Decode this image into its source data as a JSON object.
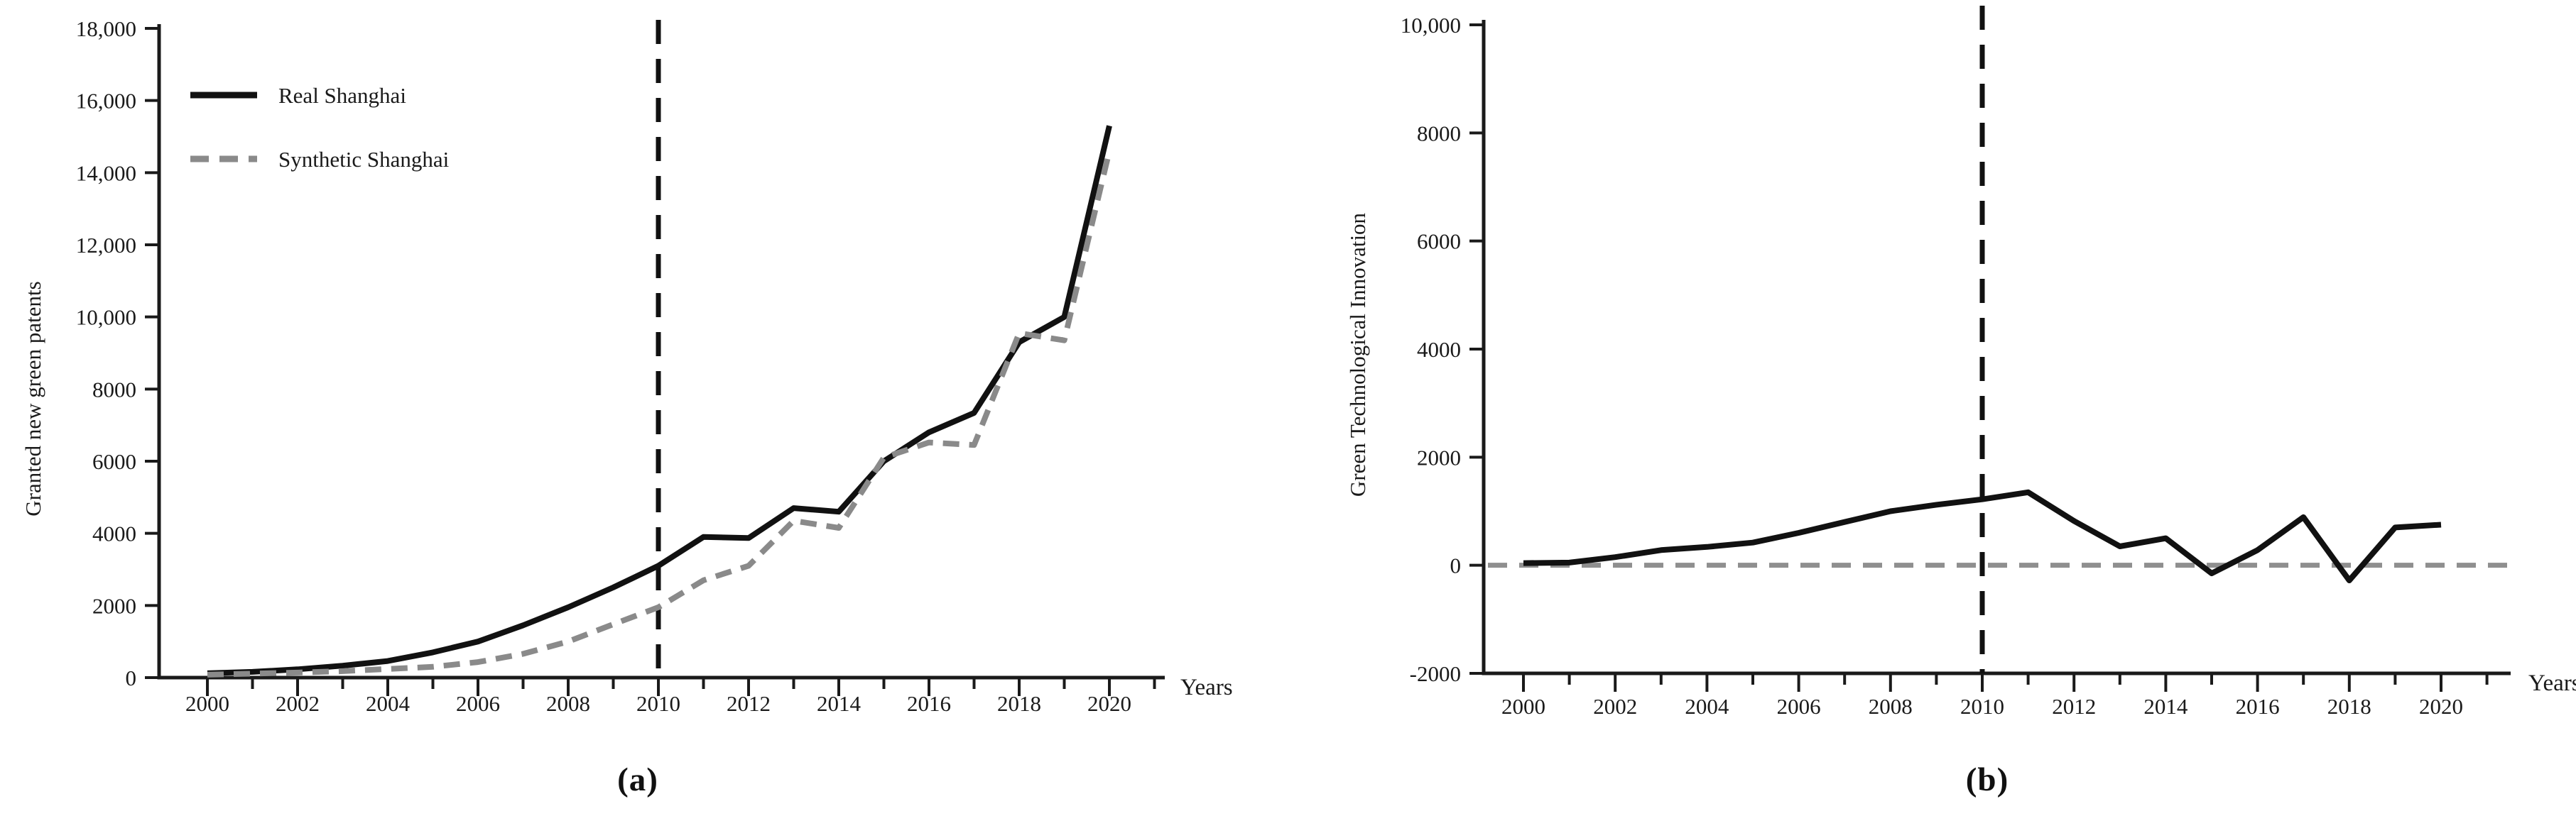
{
  "figure": {
    "background": "#ffffff",
    "axis_color": "#1a1a1a",
    "caption_a": "(a)",
    "caption_b": "(b)"
  },
  "chart_data": [
    {
      "type": "line",
      "title": "(a)",
      "xlabel": "Years",
      "ylabel": "Granted new green patents",
      "x": [
        2000,
        2001,
        2002,
        2003,
        2004,
        2005,
        2006,
        2007,
        2008,
        2009,
        2010,
        2011,
        2012,
        2013,
        2014,
        2015,
        2016,
        2017,
        2018,
        2019,
        2020
      ],
      "series": [
        {
          "name": "Real Shanghai",
          "style": "solid",
          "color": "#111111",
          "values": [
            120,
            160,
            230,
            330,
            460,
            700,
            1000,
            1450,
            1950,
            2500,
            3100,
            3900,
            3870,
            4700,
            4600,
            6000,
            6800,
            7340,
            9300,
            10000,
            15300
          ]
        },
        {
          "name": "Synthetic Shanghai",
          "style": "dashed",
          "color": "#8a8a8a",
          "values": [
            80,
            110,
            140,
            180,
            240,
            300,
            430,
            660,
            1000,
            1480,
            1950,
            2700,
            3100,
            4350,
            4150,
            6100,
            6520,
            6450,
            9550,
            9350,
            14600
          ]
        }
      ],
      "legend": [
        "Real Shanghai",
        "Synthetic Shanghai"
      ],
      "legend_position": "top-left",
      "ylim": [
        0,
        18000
      ],
      "xlim": [
        2000,
        2021
      ],
      "y_tick_labels": [
        "0",
        "2000",
        "4000",
        "6000",
        "8000",
        "10,000",
        "12,000",
        "14,000",
        "16,000",
        "18,000"
      ],
      "x_tick_labels": [
        "2000",
        "2002",
        "2004",
        "2006",
        "2008",
        "2010",
        "2012",
        "2014",
        "2016",
        "2018",
        "2020"
      ],
      "vline_x": 2010,
      "grid": false
    },
    {
      "type": "line",
      "title": "(b)",
      "xlabel": "Years",
      "ylabel": "Green Technological Innovation",
      "x": [
        2000,
        2001,
        2002,
        2003,
        2004,
        2005,
        2006,
        2007,
        2008,
        2009,
        2010,
        2011,
        2012,
        2013,
        2014,
        2015,
        2016,
        2017,
        2018,
        2019,
        2020
      ],
      "series": [
        {
          "name": "",
          "style": "solid",
          "color": "#111111",
          "values": [
            40,
            50,
            150,
            280,
            340,
            420,
            600,
            800,
            1000,
            1120,
            1220,
            1350,
            820,
            350,
            500,
            -150,
            280,
            890,
            -280,
            700,
            750
          ]
        }
      ],
      "ylim": [
        -2000,
        10000
      ],
      "xlim": [
        2000,
        2021
      ],
      "y_tick_labels": [
        "-2000",
        "0",
        "2000",
        "4000",
        "6000",
        "8000",
        "10,000"
      ],
      "x_tick_labels": [
        "2000",
        "2002",
        "2004",
        "2006",
        "2008",
        "2010",
        "2012",
        "2014",
        "2016",
        "2018",
        "2020"
      ],
      "vline_x": 2010,
      "hline_y": 0,
      "hline_color": "#8f8f8f",
      "grid": false
    }
  ]
}
